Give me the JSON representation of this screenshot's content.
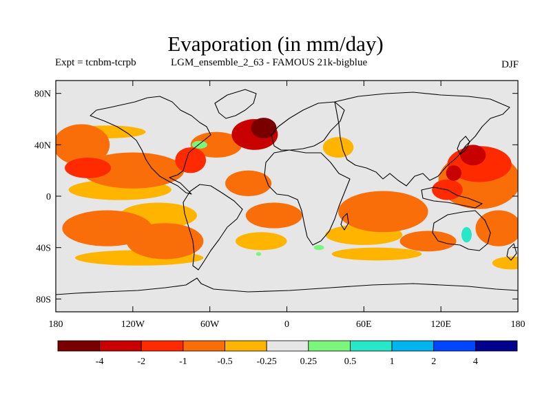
{
  "title": "Evaporation (in mm/day)",
  "subtitle_left": "Expt = tcnbm-tcrpb",
  "subtitle_mid": "LGM_ensemble_2_63 - FAMOUS 21k-bigblue",
  "season_label": "DJF",
  "map": {
    "projection": "cylindrical-equidistant",
    "lon_range": [
      -180,
      180
    ],
    "lat_range": [
      -90,
      90
    ],
    "x_ticks": [
      {
        "lon": -180,
        "label": "180"
      },
      {
        "lon": -120,
        "label": "120W"
      },
      {
        "lon": -60,
        "label": "60W"
      },
      {
        "lon": 0,
        "label": "0"
      },
      {
        "lon": 60,
        "label": "60E"
      },
      {
        "lon": 120,
        "label": "120E"
      },
      {
        "lon": 180,
        "label": "180"
      }
    ],
    "y_ticks": [
      {
        "lat": 80,
        "label": "80N"
      },
      {
        "lat": 40,
        "label": "40N"
      },
      {
        "lat": 0,
        "label": "0"
      },
      {
        "lat": -40,
        "label": "40S"
      },
      {
        "lat": -80,
        "label": "80S"
      }
    ]
  },
  "colorbar": {
    "colors": [
      "#7a0000",
      "#c80000",
      "#ff2a00",
      "#fa6e0a",
      "#ffb400",
      "#e6e6e6",
      "#7cf57c",
      "#28e6c8",
      "#00b4f0",
      "#0046ff",
      "#00008c"
    ],
    "labels": [
      "-4",
      "-2",
      "-1",
      "-0.5",
      "-0.25",
      "0.25",
      "0.5",
      "1",
      "2",
      "4"
    ]
  },
  "fields": [
    {
      "level": 3,
      "lon": -160,
      "lat": 40,
      "rx": 22,
      "ry": 16
    },
    {
      "level": 3,
      "lon": -120,
      "lat": 20,
      "rx": 40,
      "ry": 14
    },
    {
      "level": 3,
      "lon": -140,
      "lat": -25,
      "rx": 35,
      "ry": 14
    },
    {
      "level": 3,
      "lon": -95,
      "lat": -35,
      "rx": 30,
      "ry": 14
    },
    {
      "level": 3,
      "lon": -30,
      "lat": 10,
      "rx": 18,
      "ry": 10
    },
    {
      "level": 3,
      "lon": -10,
      "lat": -15,
      "rx": 22,
      "ry": 10
    },
    {
      "level": 3,
      "lon": 75,
      "lat": -12,
      "rx": 35,
      "ry": 16
    },
    {
      "level": 3,
      "lon": 150,
      "lat": 12,
      "rx": 32,
      "ry": 22
    },
    {
      "level": 3,
      "lon": 165,
      "lat": -25,
      "rx": 18,
      "ry": 14
    },
    {
      "level": 3,
      "lon": 110,
      "lat": -35,
      "rx": 22,
      "ry": 8
    },
    {
      "level": 3,
      "lon": -55,
      "lat": 40,
      "rx": 20,
      "ry": 10
    },
    {
      "level": 2,
      "lon": 150,
      "lat": 25,
      "rx": 25,
      "ry": 14
    },
    {
      "level": 2,
      "lon": 125,
      "lat": 5,
      "rx": 12,
      "ry": 8
    },
    {
      "level": 2,
      "lon": -155,
      "lat": 22,
      "rx": 18,
      "ry": 8
    },
    {
      "level": 2,
      "lon": -75,
      "lat": 28,
      "rx": 12,
      "ry": 10
    },
    {
      "level": 1,
      "lon": -25,
      "lat": 48,
      "rx": 18,
      "ry": 12
    },
    {
      "level": 1,
      "lon": 145,
      "lat": 32,
      "rx": 10,
      "ry": 8
    },
    {
      "level": 1,
      "lon": 130,
      "lat": 18,
      "rx": 6,
      "ry": 6
    },
    {
      "level": 0,
      "lon": -18,
      "lat": 53,
      "rx": 10,
      "ry": 8
    },
    {
      "level": 6,
      "lon": -68,
      "lat": 40,
      "rx": 6,
      "ry": 3
    },
    {
      "level": 6,
      "lon": 25,
      "lat": -40,
      "rx": 4,
      "ry": 2
    },
    {
      "level": 6,
      "lon": -22,
      "lat": -45,
      "rx": 2,
      "ry": 1.5
    },
    {
      "level": 7,
      "lon": 140,
      "lat": -30,
      "rx": 4,
      "ry": 6
    }
  ],
  "fields_yellow": [
    {
      "lon": -130,
      "lat": 5,
      "rx": 40,
      "ry": 8
    },
    {
      "lon": -100,
      "lat": -15,
      "rx": 30,
      "ry": 10
    },
    {
      "lon": -20,
      "lat": -35,
      "rx": 20,
      "ry": 7
    },
    {
      "lon": 60,
      "lat": -30,
      "rx": 30,
      "ry": 8
    },
    {
      "lon": 40,
      "lat": 38,
      "rx": 12,
      "ry": 8
    },
    {
      "lon": -115,
      "lat": -48,
      "rx": 50,
      "ry": 6
    },
    {
      "lon": 70,
      "lat": -45,
      "rx": 35,
      "ry": 5
    },
    {
      "lon": 175,
      "lat": -52,
      "rx": 15,
      "ry": 5
    },
    {
      "lon": -140,
      "lat": 50,
      "rx": 30,
      "ry": 5
    }
  ]
}
